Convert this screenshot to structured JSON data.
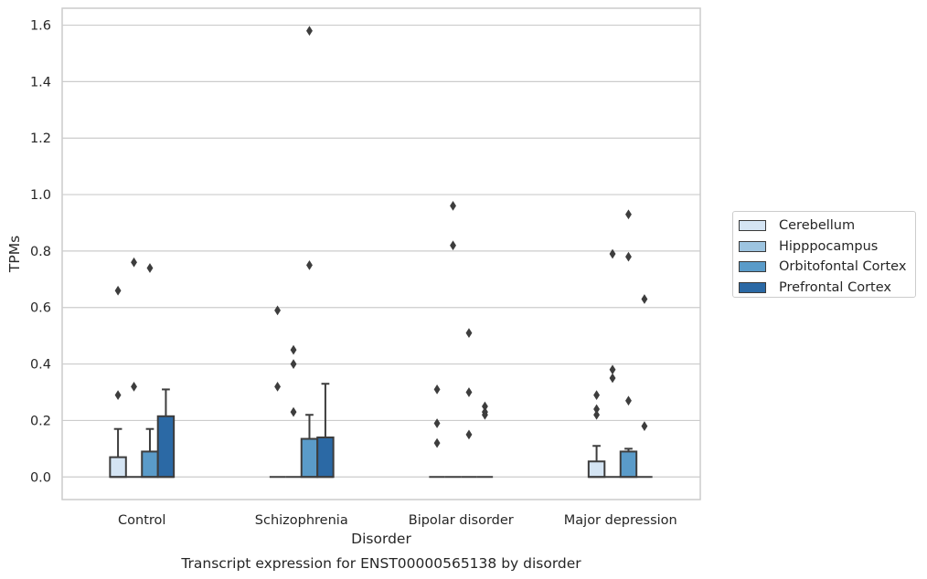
{
  "chart_data": {
    "type": "box",
    "title": "Transcript expression for ENST00000565138 by disorder",
    "xlabel": "Disorder",
    "ylabel": "TPMs",
    "ylim": [
      -0.08,
      1.66
    ],
    "yticks": [
      "0.0",
      "0.2",
      "0.4",
      "0.6",
      "0.8",
      "1.0",
      "1.2",
      "1.4",
      "1.6"
    ],
    "grid": "horizontal",
    "legend_position": "right",
    "categories": [
      "Control",
      "Schizophrenia",
      "Bipolar disorder",
      "Major depression"
    ],
    "series": [
      {
        "name": "Cerebellum",
        "color": "#d4e4f3",
        "boxes": [
          {
            "q1": 0.0,
            "median": 0.0,
            "q3": 0.07,
            "whisker_low": 0.0,
            "whisker_high": 0.17,
            "outliers": [
              0.66,
              0.29
            ]
          },
          {
            "q1": 0.0,
            "median": 0.0,
            "q3": 0.0,
            "whisker_low": 0.0,
            "whisker_high": 0.0,
            "outliers": [
              0.59,
              0.32
            ]
          },
          {
            "q1": 0.0,
            "median": 0.0,
            "q3": 0.0,
            "whisker_low": 0.0,
            "whisker_high": 0.0,
            "outliers": [
              0.31,
              0.19,
              0.12
            ]
          },
          {
            "q1": 0.0,
            "median": 0.0,
            "q3": 0.055,
            "whisker_low": 0.0,
            "whisker_high": 0.11,
            "outliers": [
              0.29,
              0.24,
              0.22
            ]
          }
        ]
      },
      {
        "name": "Hipppocampus",
        "color": "#9dc4e0",
        "boxes": [
          {
            "q1": 0.0,
            "median": 0.0,
            "q3": 0.0,
            "whisker_low": 0.0,
            "whisker_high": 0.0,
            "outliers": [
              0.76,
              0.32
            ]
          },
          {
            "q1": 0.0,
            "median": 0.0,
            "q3": 0.0,
            "whisker_low": 0.0,
            "whisker_high": 0.0,
            "outliers": [
              0.45,
              0.4,
              0.23
            ]
          },
          {
            "q1": 0.0,
            "median": 0.0,
            "q3": 0.0,
            "whisker_low": 0.0,
            "whisker_high": 0.0,
            "outliers": [
              0.96,
              0.82
            ]
          },
          {
            "q1": 0.0,
            "median": 0.0,
            "q3": 0.0,
            "whisker_low": 0.0,
            "whisker_high": 0.0,
            "outliers": [
              0.79,
              0.38,
              0.35
            ]
          }
        ]
      },
      {
        "name": "Orbitofontal Cortex",
        "color": "#5a9bc9",
        "boxes": [
          {
            "q1": 0.0,
            "median": 0.0,
            "q3": 0.09,
            "whisker_low": 0.0,
            "whisker_high": 0.17,
            "outliers": [
              0.74
            ]
          },
          {
            "q1": 0.0,
            "median": 0.0,
            "q3": 0.135,
            "whisker_low": 0.0,
            "whisker_high": 0.22,
            "outliers": [
              1.58,
              0.75
            ]
          },
          {
            "q1": 0.0,
            "median": 0.0,
            "q3": 0.0,
            "whisker_low": 0.0,
            "whisker_high": 0.0,
            "outliers": [
              0.51,
              0.3,
              0.15
            ]
          },
          {
            "q1": 0.0,
            "median": 0.0,
            "q3": 0.09,
            "whisker_low": 0.0,
            "whisker_high": 0.1,
            "outliers": [
              0.93,
              0.78,
              0.27
            ]
          }
        ]
      },
      {
        "name": "Prefrontal Cortex",
        "color": "#2b69a5",
        "boxes": [
          {
            "q1": 0.0,
            "median": 0.0,
            "q3": 0.215,
            "whisker_low": 0.0,
            "whisker_high": 0.31,
            "outliers": []
          },
          {
            "q1": 0.0,
            "median": 0.0,
            "q3": 0.14,
            "whisker_low": 0.0,
            "whisker_high": 0.33,
            "outliers": []
          },
          {
            "q1": 0.0,
            "median": 0.0,
            "q3": 0.0,
            "whisker_low": 0.0,
            "whisker_high": 0.0,
            "outliers": [
              0.25,
              0.23,
              0.22
            ]
          },
          {
            "q1": 0.0,
            "median": 0.0,
            "q3": 0.0,
            "whisker_low": 0.0,
            "whisker_high": 0.0,
            "outliers": [
              0.63,
              0.18
            ]
          }
        ]
      }
    ]
  }
}
